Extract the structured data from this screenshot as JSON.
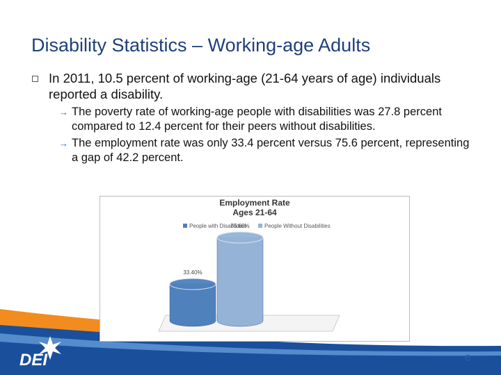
{
  "slide": {
    "title": "Disability Statistics – Working-age Adults",
    "bullets": [
      {
        "text": "In 2011, 10.5 percent of working-age (21-64 years of age) individuals reported a disability.",
        "sub_bullets": [
          "The poverty rate of working-age people with disabilities was 27.8 percent compared to 12.4 percent for their peers without disabilities.",
          "The employment rate was only 33.4 percent versus 75.6 percent, representing a gap of 42.2 percent."
        ]
      }
    ],
    "logo": "DEI",
    "page_number": "6"
  },
  "chart_data": {
    "type": "bar",
    "title": "Employment Rate",
    "subtitle": "Ages 21-64",
    "categories": [
      null
    ],
    "series": [
      {
        "name": "People with Disabilities",
        "color": "#4f81bd",
        "values": [
          33.4
        ],
        "value_labels": [
          "33.40%"
        ]
      },
      {
        "name": "People Without Disabilities",
        "color": "#95b3d7",
        "values": [
          75.6
        ],
        "value_labels": [
          "75.60%"
        ]
      }
    ]
  }
}
